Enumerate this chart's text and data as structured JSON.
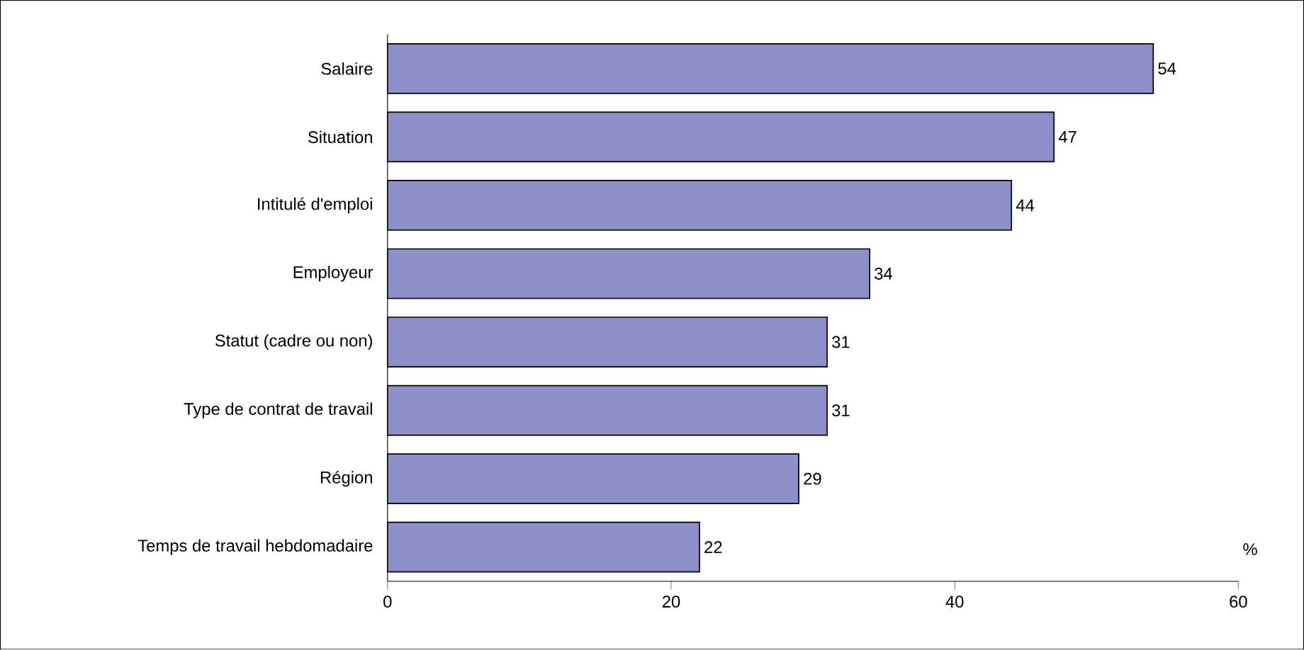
{
  "chart_data": {
    "type": "bar",
    "orientation": "horizontal",
    "categories": [
      "Salaire",
      "Situation",
      "Intitulé d'emploi",
      "Employeur",
      "Statut (cadre ou non)",
      "Type de contrat de travail",
      "Région",
      "Temps de travail hebdomadaire"
    ],
    "values": [
      54,
      47,
      44,
      34,
      31,
      31,
      29,
      22
    ],
    "color": "#8c8fc8",
    "xlim": [
      0,
      60
    ],
    "xticks": [
      0,
      20,
      40,
      60
    ],
    "data_labels": true,
    "annotations": [
      "%"
    ]
  }
}
